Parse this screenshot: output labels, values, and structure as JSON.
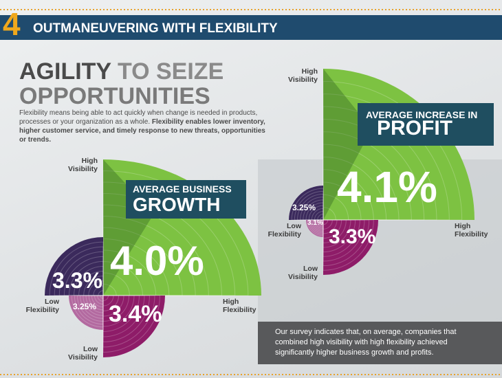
{
  "header": {
    "number": "4",
    "title": "OUTMANEUVERING WITH FLEXIBILITY"
  },
  "headline": {
    "word1": "AGILITY",
    "word2": "TO SEIZE",
    "line2": "OPPORTUNITIES"
  },
  "intro": {
    "text": "Flexibility means being able to act quickly when change is needed in products, processes or your organization as a whole.",
    "bold": "Flexibility enables lower inventory, higher customer service, and timely response to new threats, opportunities or trends."
  },
  "charts": [
    {
      "title_small": "AVERAGE BUSINESS",
      "title_big": "GROWTH",
      "quadrants": {
        "high_vis_high_flex": "4.0%",
        "high_vis_low_flex": "3.3%",
        "low_vis_low_flex": "3.25%",
        "low_vis_high_flex": "3.4%"
      },
      "axis_labels": {
        "high_visibility": "High Visibility",
        "low_flexibility": "Low Flexibility",
        "high_flexibility": "High Flexibility",
        "low_visibility": "Low Visibility"
      }
    },
    {
      "title_small": "AVERAGE INCREASE IN",
      "title_big": "PROFIT",
      "quadrants": {
        "high_vis_high_flex": "4.1%",
        "high_vis_low_flex": "3.25%",
        "low_vis_low_flex": "3.1%",
        "low_vis_high_flex": "3.3%"
      },
      "axis_labels": {
        "high_visibility": "High Visibility",
        "low_flexibility": "Low Flexibility",
        "high_flexibility": "High Flexibility",
        "low_visibility": "Low Visibility"
      }
    }
  ],
  "footnote": "Our survey indicates that, on average, companies that combined high visibility with high flexibility achieved significantly higher business growth and profits."
}
